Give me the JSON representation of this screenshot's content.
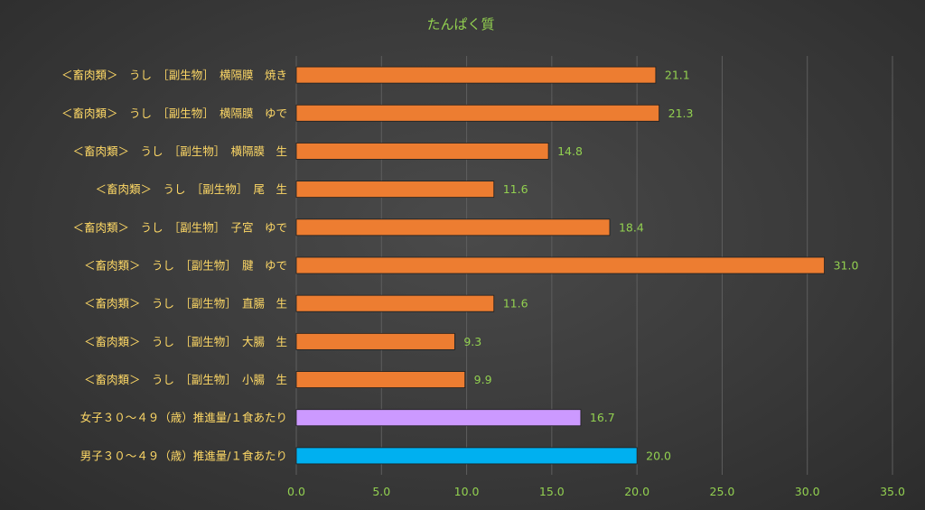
{
  "chart_data": {
    "type": "bar",
    "orientation": "horizontal",
    "title": "たんぱく質",
    "categories": [
      "＜畜肉類＞　うし　［副生物］　横隔膜　焼き",
      "＜畜肉類＞　うし　［副生物］　横隔膜　ゆで",
      "＜畜肉類＞　うし　［副生物］　横隔膜　生",
      "＜畜肉類＞　うし　［副生物］　尾　生",
      "＜畜肉類＞　うし　［副生物］　子宮　ゆで",
      "＜畜肉類＞　うし　［副生物］　腱　ゆで",
      "＜畜肉類＞　うし　［副生物］　直腸　生",
      "＜畜肉類＞　うし　［副生物］　大腸　生",
      "＜畜肉類＞　うし　［副生物］　小腸　生",
      "女子３０～４９（歳）推進量/１食あたり",
      "男子３０～４９（歳）推進量/１食あたり"
    ],
    "values": [
      21.1,
      21.3,
      14.8,
      11.6,
      18.4,
      31.0,
      11.6,
      9.3,
      9.9,
      16.7,
      20.0
    ],
    "value_labels": [
      "21.1",
      "21.3",
      "14.8",
      "11.6",
      "18.4",
      "31.0",
      "11.6",
      "9.3",
      "9.9",
      "16.7",
      "20.0"
    ],
    "colors": [
      "#ed7d31",
      "#ed7d31",
      "#ed7d31",
      "#ed7d31",
      "#ed7d31",
      "#ed7d31",
      "#ed7d31",
      "#ed7d31",
      "#ed7d31",
      "#cc99ff",
      "#00b0f0"
    ],
    "xlim": [
      0,
      35
    ],
    "x_ticks": [
      "0.0",
      "5.0",
      "10.0",
      "15.0",
      "20.0",
      "25.0",
      "30.0",
      "35.0"
    ],
    "grid": true,
    "legend": "none"
  }
}
